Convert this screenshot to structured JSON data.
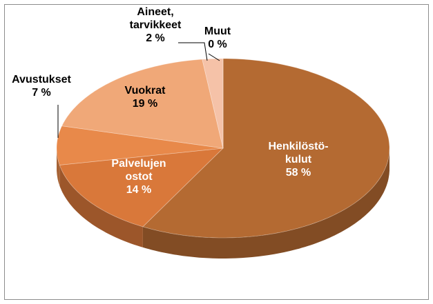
{
  "chart_data": {
    "type": "pie3d",
    "categories": [
      "Henkilöstö-\nkulut",
      "Palvelujen\nostot",
      "Avustukset",
      "Vuokrat",
      "Aineet,\ntarvikkeet",
      "Muut"
    ],
    "values": [
      58,
      14,
      7,
      19,
      2,
      0
    ],
    "value_labels": [
      "58 %",
      "14 %",
      "7 %",
      "19 %",
      "2 %",
      "0 %"
    ],
    "colors": [
      "#b46a32",
      "#d9783a",
      "#e8894a",
      "#f0a878",
      "#f5c2a8",
      "#f8d4c4"
    ]
  }
}
